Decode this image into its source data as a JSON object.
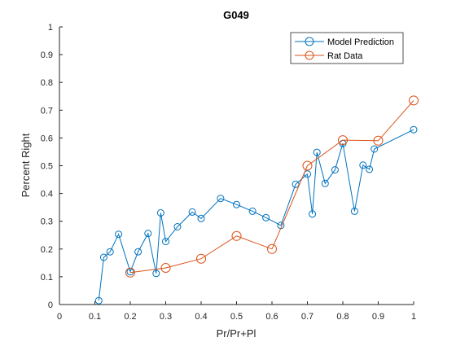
{
  "chart_data": {
    "type": "line",
    "title": "G049",
    "xlabel": "Pr/Pr+Pl",
    "ylabel": "Percent Right",
    "xlim": [
      0,
      1
    ],
    "ylim": [
      0,
      1
    ],
    "x_ticks": [
      "0",
      "0.1",
      "0.2",
      "0.3",
      "0.4",
      "0.5",
      "0.6",
      "0.7",
      "0.8",
      "0.9",
      "1"
    ],
    "y_ticks": [
      "0",
      "0.1",
      "0.2",
      "0.3",
      "0.4",
      "0.5",
      "0.6",
      "0.7",
      "0.8",
      "0.9",
      "1"
    ],
    "legend_position": "top-right",
    "grid": false,
    "series": [
      {
        "name": "Model Prediction",
        "color": "#0072BD",
        "marker": "circle",
        "x": [
          0.111,
          0.125,
          0.143,
          0.167,
          0.2,
          0.222,
          0.25,
          0.273,
          0.286,
          0.3,
          0.333,
          0.375,
          0.4,
          0.455,
          0.5,
          0.545,
          0.583,
          0.625,
          0.667,
          0.7,
          0.714,
          0.727,
          0.75,
          0.778,
          0.8,
          0.833,
          0.857,
          0.875,
          0.889,
          1.0
        ],
        "y": [
          0.014,
          0.17,
          0.19,
          0.253,
          0.118,
          0.19,
          0.256,
          0.112,
          0.33,
          0.227,
          0.28,
          0.333,
          0.31,
          0.382,
          0.36,
          0.336,
          0.313,
          0.285,
          0.433,
          0.47,
          0.326,
          0.548,
          0.436,
          0.485,
          0.58,
          0.336,
          0.502,
          0.487,
          0.56,
          0.63
        ]
      },
      {
        "name": "Rat Data",
        "color": "#D95319",
        "marker": "circle",
        "x": [
          0.2,
          0.3,
          0.4,
          0.5,
          0.6,
          0.7,
          0.8,
          0.9,
          1.0
        ],
        "y": [
          0.115,
          0.132,
          0.165,
          0.247,
          0.2,
          0.5,
          0.592,
          0.59,
          0.735
        ]
      }
    ]
  }
}
